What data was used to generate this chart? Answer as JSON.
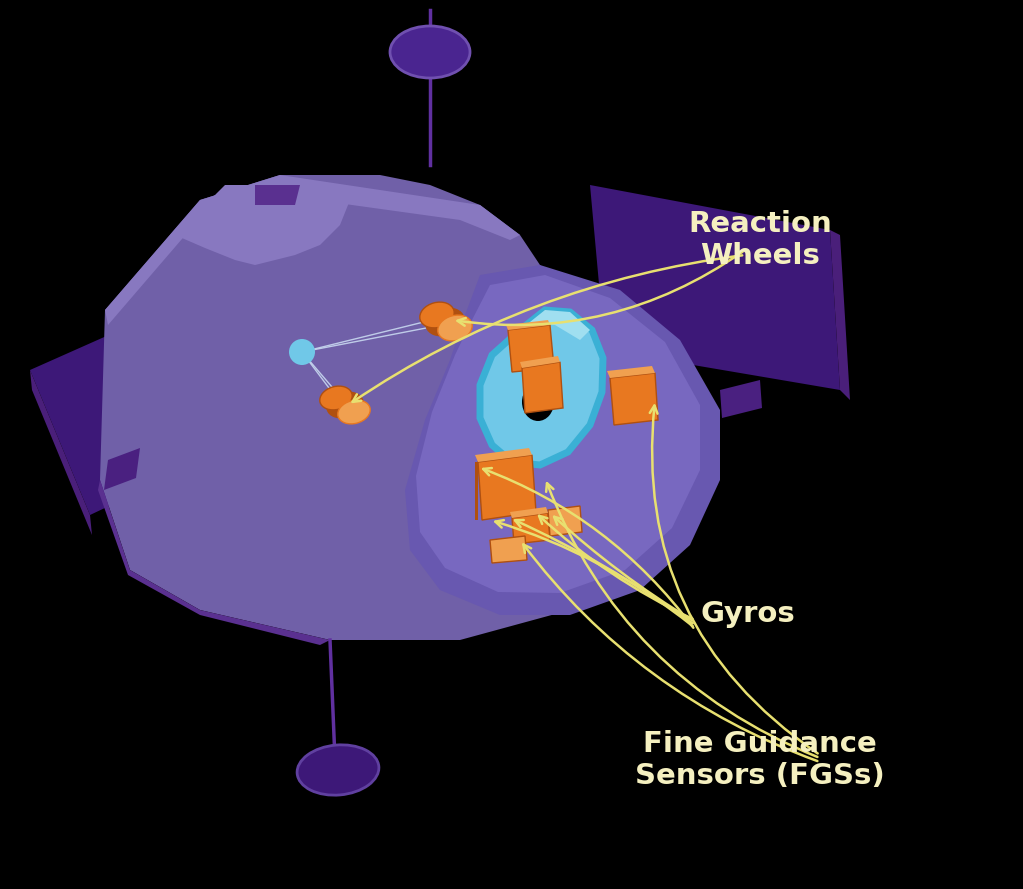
{
  "background_color": "#000000",
  "body_main": "#7060a8",
  "body_dark": "#4a1f7a",
  "body_mid": "#5a3090",
  "body_light": "#8878c0",
  "panel_dark": "#3d1878",
  "panel_mid": "#5a2090",
  "panel_light": "#6830a0",
  "cyan_main": "#70c8e8",
  "cyan_light": "#a0dff0",
  "cyan_dark": "#3ab0d5",
  "orange_main": "#e87820",
  "orange_dark": "#b05010",
  "orange_light": "#f0a050",
  "label_color": "#f5f0c0",
  "arrow_color": "#e8e070",
  "white_line": "#c8d8f0",
  "antenna_color": "#6030a0",
  "label_reaction_wheels": "Reaction\nWheels",
  "label_gyros": "Gyros",
  "label_fgs": "Fine Guidance\nSensors (FGSs)",
  "label_fontsize": 21,
  "label_fontweight": "bold"
}
